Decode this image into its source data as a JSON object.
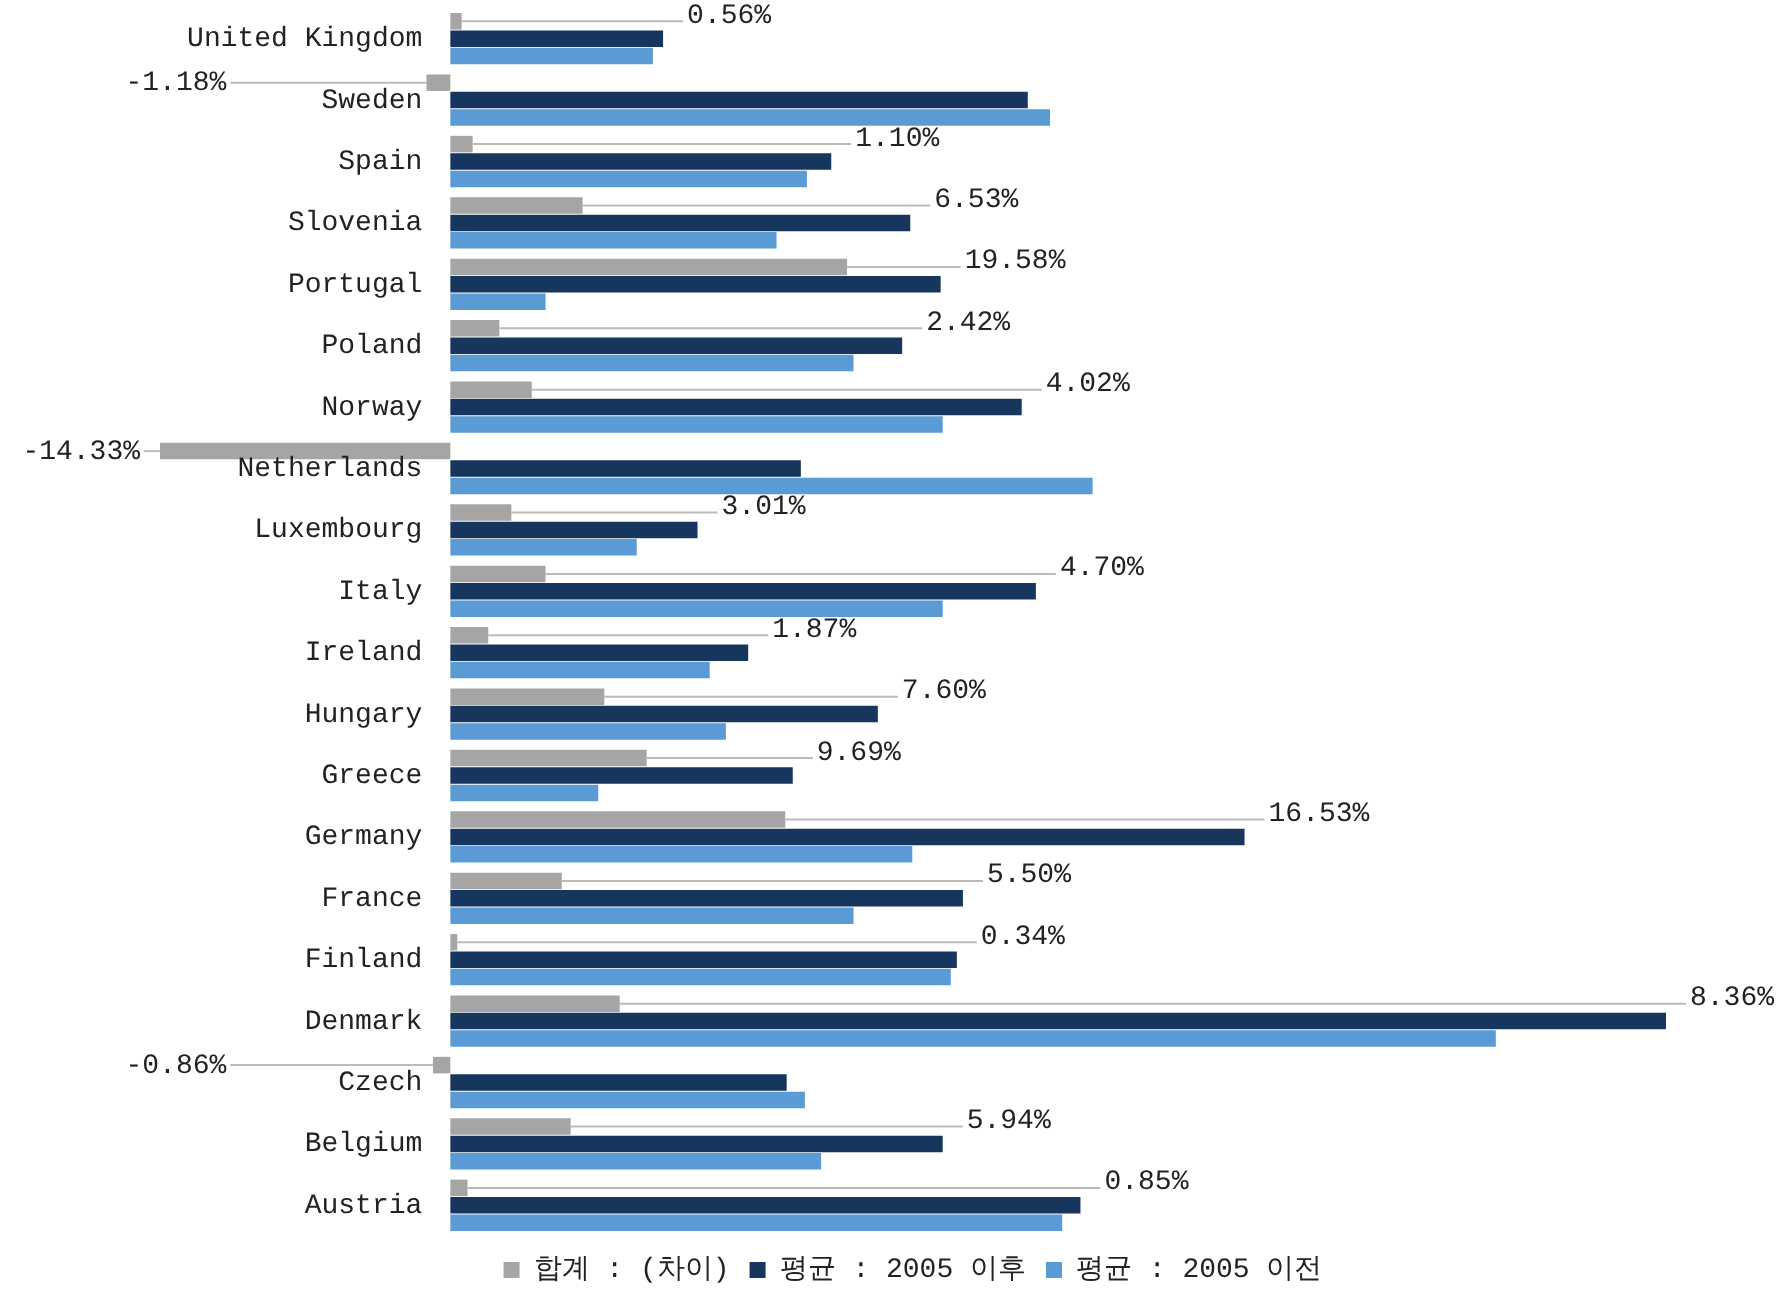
{
  "chart_data": {
    "type": "bar",
    "orientation": "horizontal",
    "legend": "bottom",
    "categories": [
      "United Kingdom",
      "Sweden",
      "Spain",
      "Slovenia",
      "Portugal",
      "Poland",
      "Norway",
      "Netherlands",
      "Luxembourg",
      "Italy",
      "Ireland",
      "Hungary",
      "Greece",
      "Germany",
      "France",
      "Finland",
      "Denmark",
      "Czech",
      "Belgium",
      "Austria"
    ],
    "series": [
      {
        "name": "합계 : (차이)",
        "color": "#a5a5a5",
        "values": [
          0.56,
          -1.18,
          1.1,
          6.53,
          19.58,
          2.42,
          4.02,
          -14.33,
          3.01,
          4.7,
          1.87,
          7.6,
          9.69,
          16.53,
          5.5,
          0.34,
          8.36,
          -0.86,
          5.94,
          0.85
        ],
        "value_labels": [
          "0.56%",
          "-1.18%",
          "1.10%",
          "6.53%",
          "19.58%",
          "2.42%",
          "4.02%",
          "-14.33%",
          "3.01%",
          "4.70%",
          "1.87%",
          "7.60%",
          "9.69%",
          "16.53%",
          "5.50%",
          "0.34%",
          "8.36%",
          "-0.86%",
          "5.94%",
          "0.85%"
        ]
      },
      {
        "name": "평균 : 2005 이후",
        "color": "#17365d",
        "values": [
          10.5,
          28.5,
          18.8,
          22.7,
          24.2,
          22.3,
          28.2,
          17.3,
          12.2,
          28.9,
          14.7,
          21.1,
          16.9,
          39.2,
          25.3,
          25.0,
          60.0,
          16.6,
          24.3,
          31.1
        ]
      },
      {
        "name": "평균 : 2005 이전",
        "color": "#5b9bd5",
        "values": [
          10.0,
          29.6,
          17.6,
          16.1,
          4.7,
          19.9,
          24.3,
          31.7,
          9.2,
          24.3,
          12.8,
          13.6,
          7.3,
          22.8,
          19.9,
          24.7,
          51.6,
          17.5,
          18.3,
          30.2
        ]
      }
    ]
  }
}
